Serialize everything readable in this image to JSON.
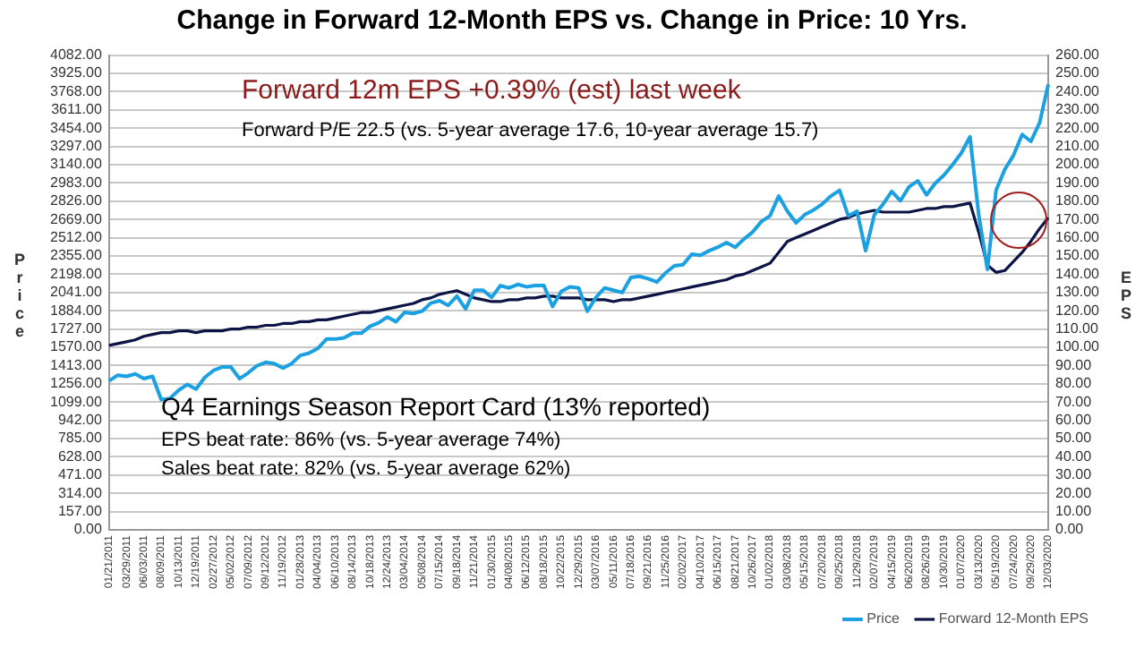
{
  "chart_data": {
    "type": "line",
    "title": "Change in Forward 12-Month EPS vs. Change in Price: 10 Yrs.",
    "ylabel": "Price",
    "y2label": "EPS",
    "annotations": [
      "Forward 12m EPS +0.39% (est) last week",
      "Forward P/E 22.5 (vs. 5-year average 17.6, 10-year average 15.7)",
      "Q4 Earnings Season Report Card (13% reported)",
      "EPS beat rate: 86% (vs. 5-year average 74%)",
      "Sales beat rate: 82% (vs. 5-year average 62%)"
    ],
    "categories": [
      "01/21/2011",
      null,
      "03/29/2011",
      null,
      "06/03/2011",
      null,
      "08/09/2011",
      null,
      "10/13/2011",
      null,
      "12/19/2011",
      null,
      "02/27/2012",
      null,
      "05/02/2012",
      null,
      "07/09/2012",
      null,
      "09/12/2012",
      null,
      "11/19/2012",
      null,
      "01/28/2013",
      null,
      "04/04/2013",
      null,
      "06/10/2013",
      null,
      "08/14/2013",
      null,
      "10/18/2013",
      null,
      "12/24/2013",
      null,
      "03/04/2014",
      null,
      "05/08/2014",
      null,
      "07/15/2014",
      null,
      "09/18/2014",
      null,
      "11/21/2014",
      null,
      "01/30/2015",
      null,
      "04/08/2015",
      null,
      "06/12/2015",
      null,
      "08/18/2015",
      null,
      "10/22/2015",
      null,
      "12/29/2015",
      null,
      "03/07/2016",
      null,
      "05/11/2016",
      null,
      "07/18/2016",
      null,
      "09/21/2016",
      null,
      "11/25/2016",
      null,
      "02/02/2017",
      null,
      "04/10/2017",
      null,
      "06/15/2017",
      null,
      "08/21/2017",
      null,
      "10/26/2017",
      null,
      "01/02/2018",
      null,
      "03/08/2018",
      null,
      "05/15/2018",
      null,
      "07/20/2018",
      null,
      "09/25/2018",
      null,
      "11/29/2018",
      null,
      "02/07/2019",
      null,
      "04/15/2019",
      null,
      "06/20/2019",
      null,
      "08/26/2019",
      null,
      "10/30/2019",
      null,
      "01/07/2020",
      null,
      "03/13/2020",
      null,
      "05/19/2020",
      null,
      "07/24/2020",
      null,
      "09/29/2020",
      null,
      "12/03/2020"
    ],
    "series": [
      {
        "name": "Price",
        "color": "#1ba1e2",
        "values": [
          1280,
          1330,
          1320,
          1340,
          1300,
          1320,
          1120,
          1130,
          1200,
          1250,
          1210,
          1310,
          1370,
          1400,
          1400,
          1300,
          1350,
          1410,
          1440,
          1430,
          1390,
          1430,
          1500,
          1520,
          1560,
          1640,
          1640,
          1650,
          1690,
          1690,
          1750,
          1780,
          1830,
          1790,
          1870,
          1860,
          1880,
          1950,
          1970,
          1930,
          2010,
          1900,
          2060,
          2060,
          2000,
          2100,
          2080,
          2110,
          2090,
          2100,
          2100,
          1920,
          2050,
          2090,
          2080,
          1880,
          2000,
          2080,
          2060,
          2040,
          2170,
          2180,
          2160,
          2130,
          2210,
          2270,
          2280,
          2370,
          2360,
          2400,
          2430,
          2470,
          2430,
          2500,
          2560,
          2650,
          2700,
          2870,
          2740,
          2640,
          2710,
          2750,
          2800,
          2870,
          2920,
          2700,
          2740,
          2400,
          2710,
          2800,
          2910,
          2830,
          2950,
          3000,
          2880,
          2980,
          3050,
          3140,
          3240,
          3380,
          2710,
          2240,
          2920,
          3100,
          3220,
          3400,
          3340,
          3500,
          3830
        ]
      },
      {
        "name": "Forward 12-Month EPS",
        "color": "#0c1445",
        "axis": "y2",
        "values": [
          101,
          102,
          103,
          104,
          106,
          107,
          108,
          108,
          109,
          109,
          108,
          109,
          109,
          109,
          110,
          110,
          111,
          111,
          112,
          112,
          113,
          113,
          114,
          114,
          115,
          115,
          116,
          117,
          118,
          119,
          119,
          120,
          121,
          122,
          123,
          124,
          126,
          127,
          129,
          130,
          131,
          129,
          127,
          126,
          125,
          125,
          126,
          126,
          127,
          127,
          128,
          128,
          127,
          127,
          127,
          126,
          126,
          126,
          125,
          126,
          126,
          127,
          128,
          129,
          130,
          131,
          132,
          133,
          134,
          135,
          136,
          137,
          139,
          140,
          142,
          144,
          146,
          152,
          158,
          160,
          162,
          164,
          166,
          168,
          170,
          171,
          173,
          174,
          175,
          174,
          174,
          174,
          174,
          175,
          176,
          176,
          177,
          177,
          178,
          179,
          163,
          145,
          141,
          142,
          147,
          152,
          158,
          165,
          171
        ]
      }
    ],
    "ylim": [
      0,
      4082
    ],
    "yticks": [
      {
        "value": 0,
        "label": "0.00"
      },
      {
        "value": 157,
        "label": "157.00"
      },
      {
        "value": 314,
        "label": "314.00"
      },
      {
        "value": 471,
        "label": "471.00"
      },
      {
        "value": 628,
        "label": "628.00"
      },
      {
        "value": 785,
        "label": "785.00"
      },
      {
        "value": 942,
        "label": "942.00"
      },
      {
        "value": 1099,
        "label": "1099.00"
      },
      {
        "value": 1256,
        "label": "1256.00"
      },
      {
        "value": 1413,
        "label": "1413.00"
      },
      {
        "value": 1570,
        "label": "1570.00"
      },
      {
        "value": 1727,
        "label": "1727.00"
      },
      {
        "value": 1884,
        "label": "1884.00"
      },
      {
        "value": 2041,
        "label": "2041.00"
      },
      {
        "value": 2198,
        "label": "2198.00"
      },
      {
        "value": 2355,
        "label": "2355.00"
      },
      {
        "value": 2512,
        "label": "2512.00"
      },
      {
        "value": 2669,
        "label": "2669.00"
      },
      {
        "value": 2826,
        "label": "2826.00"
      },
      {
        "value": 2983,
        "label": "2983.00"
      },
      {
        "value": 3140,
        "label": "3140.00"
      },
      {
        "value": 3297,
        "label": "3297.00"
      },
      {
        "value": 3454,
        "label": "3454.00"
      },
      {
        "value": 3611,
        "label": "3611.00"
      },
      {
        "value": 3768,
        "label": "3768.00"
      },
      {
        "value": 3925,
        "label": "3925.00"
      },
      {
        "value": 4082,
        "label": "4082.00"
      }
    ],
    "y2lim": [
      0,
      260
    ],
    "y2ticks": [
      {
        "value": 0,
        "label": "0.00"
      },
      {
        "value": 10,
        "label": "10.00"
      },
      {
        "value": 20,
        "label": "20.00"
      },
      {
        "value": 30,
        "label": "30.00"
      },
      {
        "value": 40,
        "label": "40.00"
      },
      {
        "value": 50,
        "label": "50.00"
      },
      {
        "value": 60,
        "label": "60.00"
      },
      {
        "value": 70,
        "label": "70.00"
      },
      {
        "value": 80,
        "label": "80.00"
      },
      {
        "value": 90,
        "label": "90.00"
      },
      {
        "value": 100,
        "label": "100.00"
      },
      {
        "value": 110,
        "label": "110.00"
      },
      {
        "value": 120,
        "label": "120.00"
      },
      {
        "value": 130,
        "label": "130.00"
      },
      {
        "value": 140,
        "label": "140.00"
      },
      {
        "value": 150,
        "label": "150.00"
      },
      {
        "value": 160,
        "label": "160.00"
      },
      {
        "value": 170,
        "label": "170.00"
      },
      {
        "value": 180,
        "label": "180.00"
      },
      {
        "value": 190,
        "label": "190.00"
      },
      {
        "value": 200,
        "label": "200.00"
      },
      {
        "value": 210,
        "label": "210.00"
      },
      {
        "value": 220,
        "label": "220.00"
      },
      {
        "value": 230,
        "label": "230.00"
      },
      {
        "value": 240,
        "label": "240.00"
      },
      {
        "value": 250,
        "label": "250.00"
      },
      {
        "value": 260,
        "label": "260.00"
      }
    ],
    "grid": "y",
    "legend": "bottom",
    "marker": "none",
    "line_style": "solid"
  }
}
